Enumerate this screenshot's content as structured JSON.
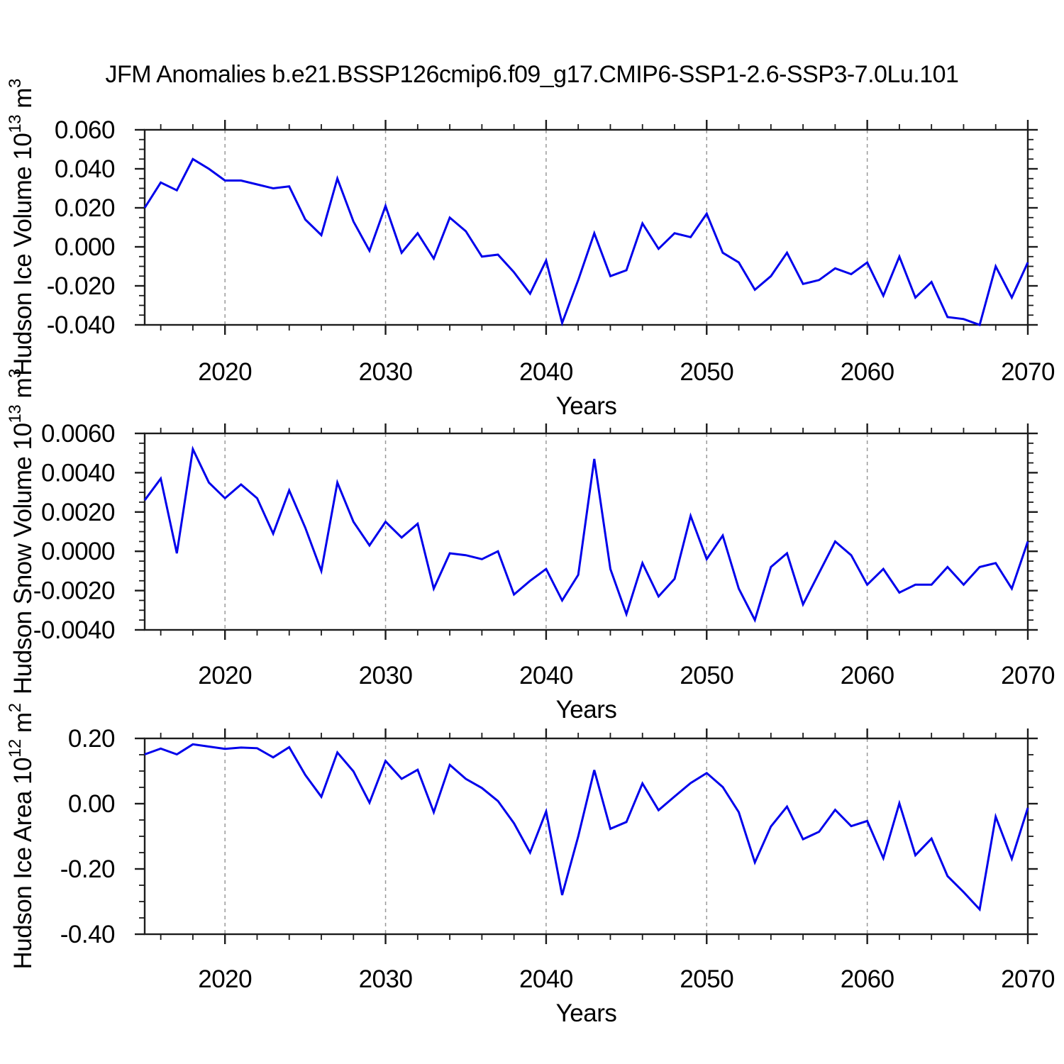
{
  "title": "JFM Anomalies b.e21.BSSP126cmip6.f09_g17.CMIP6-SSP1-2.6-SSP3-7.0Lu.101",
  "colors": {
    "line": "#0000EB",
    "grid": "#999999",
    "axis": "#1c1c1c",
    "text": "#000000",
    "background": "#ffffff"
  },
  "chart_data": [
    {
      "type": "line",
      "name": "hudson-ice-volume",
      "ylabel_parts": [
        [
          "t",
          "Hudson Ice Volume 10"
        ],
        [
          "sup",
          "13"
        ],
        [
          "t",
          " m"
        ],
        [
          "sup",
          "3"
        ]
      ],
      "xlabel": "Years",
      "xlim": [
        2015,
        2070
      ],
      "xticks": [
        2020,
        2030,
        2040,
        2050,
        2060,
        2070
      ],
      "xtick_labels": [
        "2020",
        "2030",
        "2040",
        "2050",
        "2060",
        "2070"
      ],
      "x_minor_step": 2,
      "grid_x": [
        2020,
        2030,
        2040,
        2050,
        2060
      ],
      "ylim": [
        -0.04,
        0.06
      ],
      "yticks": [
        -0.04,
        -0.02,
        0.0,
        0.02,
        0.04,
        0.06
      ],
      "ytick_labels": [
        "-0.040",
        "-0.020",
        "0.000",
        "0.020",
        "0.040",
        "0.060"
      ],
      "y_minor_step": 0.005,
      "x": [
        2015,
        2016,
        2017,
        2018,
        2019,
        2020,
        2021,
        2022,
        2023,
        2024,
        2025,
        2026,
        2027,
        2028,
        2029,
        2030,
        2031,
        2032,
        2033,
        2034,
        2035,
        2036,
        2037,
        2038,
        2039,
        2040,
        2041,
        2042,
        2043,
        2044,
        2045,
        2046,
        2047,
        2048,
        2049,
        2050,
        2051,
        2052,
        2053,
        2054,
        2055,
        2056,
        2057,
        2058,
        2059,
        2060,
        2061,
        2062,
        2063,
        2064,
        2065,
        2066,
        2067,
        2068,
        2069,
        2070
      ],
      "values": [
        0.02,
        0.033,
        0.029,
        0.045,
        0.04,
        0.034,
        0.034,
        0.032,
        0.03,
        0.031,
        0.014,
        0.006,
        0.035,
        0.013,
        -0.002,
        0.021,
        -0.003,
        0.007,
        -0.006,
        0.015,
        0.008,
        -0.005,
        -0.004,
        -0.013,
        -0.024,
        -0.007,
        -0.039,
        -0.017,
        0.007,
        -0.015,
        -0.012,
        0.012,
        -0.001,
        0.007,
        0.005,
        0.017,
        -0.003,
        -0.008,
        -0.022,
        -0.015,
        -0.003,
        -0.019,
        -0.017,
        -0.011,
        -0.014,
        -0.008,
        -0.025,
        -0.005,
        -0.026,
        -0.018,
        -0.036,
        -0.037,
        -0.04,
        -0.01,
        -0.026,
        -0.008
      ]
    },
    {
      "type": "line",
      "name": "hudson-snow-volume",
      "ylabel_parts": [
        [
          "t",
          "Hudson Snow Volume 10"
        ],
        [
          "sup",
          "13"
        ],
        [
          "t",
          " m"
        ],
        [
          "sup",
          "3"
        ]
      ],
      "xlabel": "Years",
      "xlim": [
        2015,
        2070
      ],
      "xticks": [
        2020,
        2030,
        2040,
        2050,
        2060,
        2070
      ],
      "xtick_labels": [
        "2020",
        "2030",
        "2040",
        "2050",
        "2060",
        "2070"
      ],
      "x_minor_step": 2,
      "grid_x": [
        2020,
        2030,
        2040,
        2050,
        2060
      ],
      "ylim": [
        -0.004,
        0.006
      ],
      "yticks": [
        -0.004,
        -0.002,
        0.0,
        0.002,
        0.004,
        0.006
      ],
      "ytick_labels": [
        "-0.0040",
        "-0.0020",
        "0.0000",
        "0.0020",
        "0.0040",
        "0.0060"
      ],
      "y_minor_step": 0.0005,
      "x": [
        2015,
        2016,
        2017,
        2018,
        2019,
        2020,
        2021,
        2022,
        2023,
        2024,
        2025,
        2026,
        2027,
        2028,
        2029,
        2030,
        2031,
        2032,
        2033,
        2034,
        2035,
        2036,
        2037,
        2038,
        2039,
        2040,
        2041,
        2042,
        2043,
        2044,
        2045,
        2046,
        2047,
        2048,
        2049,
        2050,
        2051,
        2052,
        2053,
        2054,
        2055,
        2056,
        2057,
        2058,
        2059,
        2060,
        2061,
        2062,
        2063,
        2064,
        2065,
        2066,
        2067,
        2068,
        2069,
        2070
      ],
      "values": [
        0.0026,
        0.0037,
        -0.0001,
        0.0052,
        0.0035,
        0.0027,
        0.0034,
        0.0027,
        0.0009,
        0.0031,
        0.0012,
        -0.001,
        0.0035,
        0.0015,
        0.0003,
        0.0015,
        0.0007,
        0.0014,
        -0.0019,
        -0.0001,
        -0.0002,
        -0.0004,
        0.0,
        -0.0022,
        -0.0015,
        -0.0009,
        -0.0025,
        -0.0012,
        0.0047,
        -0.0009,
        -0.0032,
        -0.0006,
        -0.0023,
        -0.0014,
        0.0018,
        -0.0004,
        0.0008,
        -0.0019,
        -0.0035,
        -0.0008,
        -0.0001,
        -0.0027,
        -0.0011,
        0.0005,
        -0.0002,
        -0.0017,
        -0.0009,
        -0.0021,
        -0.0017,
        -0.0017,
        -0.0008,
        -0.0017,
        -0.0008,
        -0.0006,
        -0.0019,
        0.0005
      ]
    },
    {
      "type": "line",
      "name": "hudson-ice-area",
      "ylabel_parts": [
        [
          "t",
          "Hudson Ice Area 10"
        ],
        [
          "sup",
          "12"
        ],
        [
          "t",
          " m"
        ],
        [
          "sup",
          "2"
        ]
      ],
      "xlabel": "Years",
      "xlim": [
        2015,
        2070
      ],
      "xticks": [
        2020,
        2030,
        2040,
        2050,
        2060,
        2070
      ],
      "xtick_labels": [
        "2020",
        "2030",
        "2040",
        "2050",
        "2060",
        "2070"
      ],
      "x_minor_step": 2,
      "grid_x": [
        2020,
        2030,
        2040,
        2050,
        2060
      ],
      "ylim": [
        -0.4,
        0.2
      ],
      "yticks": [
        -0.4,
        -0.2,
        0.0,
        0.2
      ],
      "ytick_labels": [
        "-0.40",
        "-0.20",
        "0.00",
        "0.20"
      ],
      "y_minor_step": 0.05,
      "x": [
        2015,
        2016,
        2017,
        2018,
        2019,
        2020,
        2021,
        2022,
        2023,
        2024,
        2025,
        2026,
        2027,
        2028,
        2029,
        2030,
        2031,
        2032,
        2033,
        2034,
        2035,
        2036,
        2037,
        2038,
        2039,
        2040,
        2041,
        2042,
        2043,
        2044,
        2045,
        2046,
        2047,
        2048,
        2049,
        2050,
        2051,
        2052,
        2053,
        2054,
        2055,
        2056,
        2057,
        2058,
        2059,
        2060,
        2061,
        2062,
        2063,
        2064,
        2065,
        2066,
        2067,
        2068,
        2069,
        2070
      ],
      "values": [
        0.151,
        0.169,
        0.151,
        0.182,
        0.175,
        0.168,
        0.172,
        0.17,
        0.142,
        0.173,
        0.088,
        0.021,
        0.157,
        0.099,
        0.003,
        0.131,
        0.076,
        0.104,
        -0.026,
        0.119,
        0.076,
        0.048,
        0.008,
        -0.06,
        -0.15,
        -0.024,
        -0.28,
        -0.1,
        0.103,
        -0.077,
        -0.056,
        0.062,
        -0.02,
        0.022,
        0.063,
        0.094,
        0.051,
        -0.026,
        -0.18,
        -0.07,
        -0.009,
        -0.109,
        -0.086,
        -0.019,
        -0.069,
        -0.053,
        -0.167,
        0.001,
        -0.158,
        -0.107,
        -0.222,
        -0.271,
        -0.324,
        -0.04,
        -0.169,
        -0.013
      ]
    }
  ]
}
